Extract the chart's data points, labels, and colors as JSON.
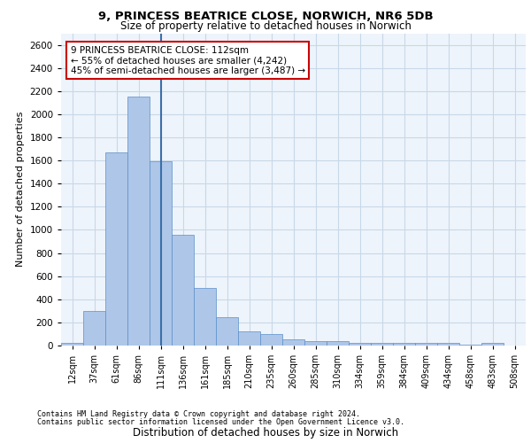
{
  "title_line1": "9, PRINCESS BEATRICE CLOSE, NORWICH, NR6 5DB",
  "title_line2": "Size of property relative to detached houses in Norwich",
  "xlabel": "Distribution of detached houses by size in Norwich",
  "ylabel": "Number of detached properties",
  "categories": [
    "12sqm",
    "37sqm",
    "61sqm",
    "86sqm",
    "111sqm",
    "136sqm",
    "161sqm",
    "185sqm",
    "210sqm",
    "235sqm",
    "260sqm",
    "285sqm",
    "310sqm",
    "334sqm",
    "359sqm",
    "384sqm",
    "409sqm",
    "434sqm",
    "458sqm",
    "483sqm",
    "508sqm"
  ],
  "values": [
    25,
    300,
    1670,
    2150,
    1590,
    960,
    500,
    245,
    120,
    100,
    50,
    38,
    35,
    20,
    20,
    20,
    20,
    20,
    5,
    25,
    0
  ],
  "bar_color": "#aec6e8",
  "bar_edge_color": "#5b8fc9",
  "highlight_index": 4,
  "highlight_line_color": "#3a6faa",
  "annotation_text": "9 PRINCESS BEATRICE CLOSE: 112sqm\n← 55% of detached houses are smaller (4,242)\n45% of semi-detached houses are larger (3,487) →",
  "annotation_box_edge_color": "#cc0000",
  "annotation_box_face_color": "#ffffff",
  "ylim": [
    0,
    2700
  ],
  "yticks": [
    0,
    200,
    400,
    600,
    800,
    1000,
    1200,
    1400,
    1600,
    1800,
    2000,
    2200,
    2400,
    2600
  ],
  "grid_color": "#c8d8e8",
  "background_color": "#eef4fb",
  "footer_line1": "Contains HM Land Registry data © Crown copyright and database right 2024.",
  "footer_line2": "Contains public sector information licensed under the Open Government Licence v3.0."
}
